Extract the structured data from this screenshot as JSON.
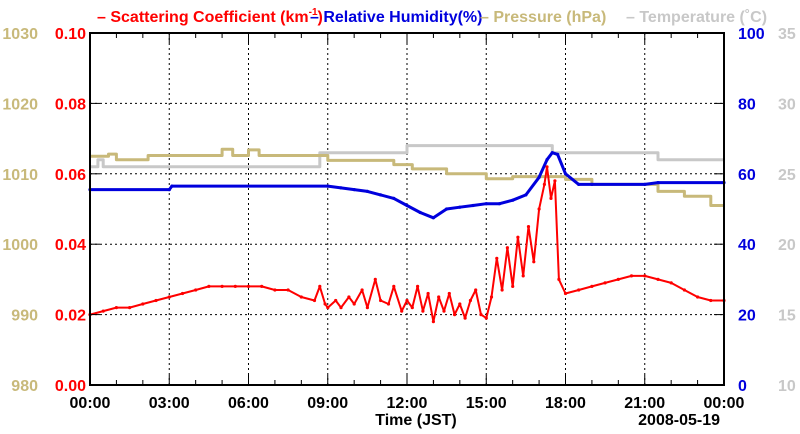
{
  "chart_data": {
    "type": "line",
    "title": "",
    "legend": [
      {
        "label": "– Scattering Coefficient (km",
        "sup": "-1",
        "suffix": ")",
        "color": "#ff0000"
      },
      {
        "label": "– Relative Humidity(%)",
        "color": "#0000dd"
      },
      {
        "label": "– Pressure (hPa)",
        "color": "#c8b97a"
      },
      {
        "label": "– Temperature (˚C)",
        "color": "#c8c8c8"
      }
    ],
    "xlabel": "Time (JST)",
    "date_label": "2008-05-19",
    "x_ticks": [
      "00:00",
      "03:00",
      "06:00",
      "09:00",
      "12:00",
      "15:00",
      "18:00",
      "21:00",
      "00:00"
    ],
    "x_range_hours": [
      0,
      24
    ],
    "axes": {
      "scattering": {
        "range": [
          0.0,
          0.1
        ],
        "ticks": [
          "0.00",
          "0.02",
          "0.04",
          "0.06",
          "0.08",
          "0.10"
        ],
        "color": "#ff0000"
      },
      "pressure": {
        "range": [
          980,
          1030
        ],
        "ticks": [
          "980",
          "990",
          "1000",
          "1010",
          "1020",
          "1030"
        ],
        "color": "#c8b97a"
      },
      "humidity": {
        "range": [
          0,
          100
        ],
        "ticks": [
          "0",
          "20",
          "40",
          "60",
          "80",
          "100"
        ],
        "color": "#0000dd"
      },
      "temperature": {
        "range": [
          10,
          35
        ],
        "ticks": [
          "10",
          "15",
          "20",
          "25",
          "30",
          "35"
        ],
        "color": "#c8c8c8"
      }
    },
    "series": [
      {
        "name": "Scattering Coefficient",
        "axis": "scattering",
        "points": [
          [
            0.0,
            0.02
          ],
          [
            0.5,
            0.021
          ],
          [
            1.0,
            0.022
          ],
          [
            1.5,
            0.022
          ],
          [
            2.0,
            0.023
          ],
          [
            2.5,
            0.024
          ],
          [
            3.0,
            0.025
          ],
          [
            3.5,
            0.026
          ],
          [
            4.0,
            0.027
          ],
          [
            4.5,
            0.028
          ],
          [
            5.0,
            0.028
          ],
          [
            5.5,
            0.028
          ],
          [
            6.0,
            0.028
          ],
          [
            6.5,
            0.028
          ],
          [
            7.0,
            0.027
          ],
          [
            7.5,
            0.027
          ],
          [
            8.0,
            0.025
          ],
          [
            8.5,
            0.024
          ],
          [
            8.7,
            0.028
          ],
          [
            8.9,
            0.023
          ],
          [
            9.0,
            0.022
          ],
          [
            9.3,
            0.024
          ],
          [
            9.5,
            0.022
          ],
          [
            9.8,
            0.025
          ],
          [
            10.0,
            0.023
          ],
          [
            10.3,
            0.027
          ],
          [
            10.5,
            0.022
          ],
          [
            10.8,
            0.03
          ],
          [
            11.0,
            0.024
          ],
          [
            11.3,
            0.023
          ],
          [
            11.5,
            0.028
          ],
          [
            11.8,
            0.021
          ],
          [
            12.0,
            0.024
          ],
          [
            12.2,
            0.022
          ],
          [
            12.4,
            0.028
          ],
          [
            12.6,
            0.021
          ],
          [
            12.8,
            0.026
          ],
          [
            13.0,
            0.018
          ],
          [
            13.2,
            0.025
          ],
          [
            13.4,
            0.021
          ],
          [
            13.6,
            0.026
          ],
          [
            13.8,
            0.02
          ],
          [
            14.0,
            0.023
          ],
          [
            14.2,
            0.019
          ],
          [
            14.4,
            0.024
          ],
          [
            14.6,
            0.027
          ],
          [
            14.8,
            0.02
          ],
          [
            15.0,
            0.019
          ],
          [
            15.2,
            0.025
          ],
          [
            15.4,
            0.036
          ],
          [
            15.6,
            0.027
          ],
          [
            15.8,
            0.039
          ],
          [
            16.0,
            0.028
          ],
          [
            16.2,
            0.042
          ],
          [
            16.4,
            0.031
          ],
          [
            16.6,
            0.045
          ],
          [
            16.8,
            0.035
          ],
          [
            17.0,
            0.05
          ],
          [
            17.2,
            0.057
          ],
          [
            17.3,
            0.062
          ],
          [
            17.45,
            0.053
          ],
          [
            17.6,
            0.058
          ],
          [
            17.75,
            0.03
          ],
          [
            18.0,
            0.026
          ],
          [
            18.5,
            0.027
          ],
          [
            19.0,
            0.028
          ],
          [
            19.5,
            0.029
          ],
          [
            20.0,
            0.03
          ],
          [
            20.5,
            0.031
          ],
          [
            21.0,
            0.031
          ],
          [
            21.5,
            0.03
          ],
          [
            22.0,
            0.029
          ],
          [
            22.5,
            0.027
          ],
          [
            23.0,
            0.025
          ],
          [
            23.5,
            0.024
          ],
          [
            24.0,
            0.024
          ]
        ]
      },
      {
        "name": "Relative Humidity",
        "axis": "humidity",
        "points": [
          [
            0.0,
            55.5
          ],
          [
            3.0,
            55.5
          ],
          [
            3.1,
            56.5
          ],
          [
            9.0,
            56.5
          ],
          [
            9.5,
            56.0
          ],
          [
            10.0,
            55.5
          ],
          [
            10.5,
            55.0
          ],
          [
            11.0,
            54.0
          ],
          [
            11.5,
            53.0
          ],
          [
            12.0,
            51.0
          ],
          [
            12.5,
            49.0
          ],
          [
            13.0,
            47.5
          ],
          [
            13.5,
            50.0
          ],
          [
            14.0,
            50.5
          ],
          [
            14.5,
            51.0
          ],
          [
            15.0,
            51.5
          ],
          [
            15.5,
            51.5
          ],
          [
            16.0,
            52.5
          ],
          [
            16.5,
            54.0
          ],
          [
            17.0,
            59.0
          ],
          [
            17.3,
            64.0
          ],
          [
            17.5,
            66.0
          ],
          [
            17.7,
            65.5
          ],
          [
            18.0,
            60.0
          ],
          [
            18.5,
            57.0
          ],
          [
            19.0,
            57.0
          ],
          [
            21.0,
            57.0
          ],
          [
            21.5,
            57.5
          ],
          [
            24.0,
            57.5
          ]
        ]
      },
      {
        "name": "Pressure",
        "axis": "pressure",
        "points": [
          [
            0.0,
            1012.5
          ],
          [
            0.7,
            1012.5
          ],
          [
            0.7,
            1012.8
          ],
          [
            1.0,
            1012.8
          ],
          [
            1.0,
            1012.0
          ],
          [
            2.2,
            1012.0
          ],
          [
            2.2,
            1012.6
          ],
          [
            5.0,
            1012.6
          ],
          [
            5.0,
            1013.5
          ],
          [
            5.4,
            1013.5
          ],
          [
            5.4,
            1012.6
          ],
          [
            6.0,
            1012.6
          ],
          [
            6.0,
            1013.4
          ],
          [
            6.4,
            1013.4
          ],
          [
            6.4,
            1012.6
          ],
          [
            9.0,
            1012.6
          ],
          [
            9.0,
            1011.9
          ],
          [
            11.5,
            1011.9
          ],
          [
            11.5,
            1011.3
          ],
          [
            12.2,
            1011.3
          ],
          [
            12.2,
            1010.7
          ],
          [
            13.5,
            1010.7
          ],
          [
            13.5,
            1010.0
          ],
          [
            15.0,
            1010.0
          ],
          [
            15.0,
            1009.3
          ],
          [
            16.0,
            1009.3
          ],
          [
            16.0,
            1009.6
          ],
          [
            18.0,
            1009.6
          ],
          [
            18.0,
            1009.2
          ],
          [
            19.0,
            1009.2
          ],
          [
            19.0,
            1008.5
          ],
          [
            21.5,
            1008.5
          ],
          [
            21.5,
            1007.5
          ],
          [
            22.5,
            1007.5
          ],
          [
            22.5,
            1006.8
          ],
          [
            23.5,
            1006.8
          ],
          [
            23.5,
            1005.5
          ],
          [
            24.0,
            1005.5
          ]
        ]
      },
      {
        "name": "Temperature",
        "axis": "temperature",
        "points": [
          [
            0.0,
            25.5
          ],
          [
            0.3,
            25.5
          ],
          [
            0.3,
            26.0
          ],
          [
            0.5,
            26.0
          ],
          [
            0.5,
            25.5
          ],
          [
            8.7,
            25.5
          ],
          [
            8.7,
            26.5
          ],
          [
            12.0,
            26.5
          ],
          [
            12.0,
            27.0
          ],
          [
            17.5,
            27.0
          ],
          [
            17.5,
            26.5
          ],
          [
            21.5,
            26.5
          ],
          [
            21.5,
            26.0
          ],
          [
            24.0,
            26.0
          ]
        ]
      }
    ]
  }
}
